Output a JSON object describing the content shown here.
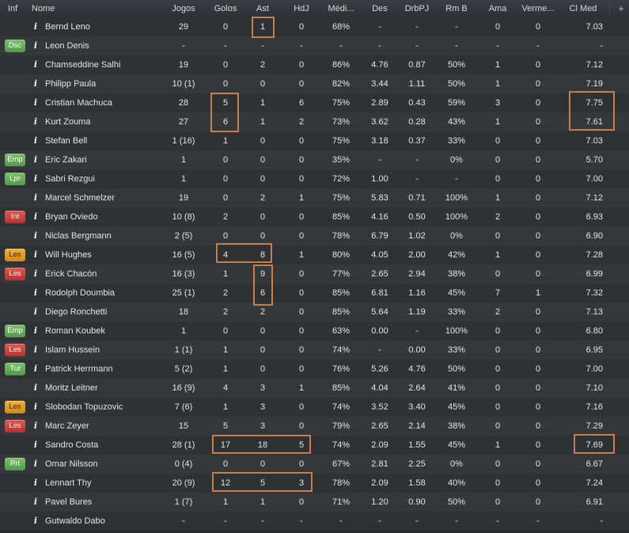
{
  "colors": {
    "highlight": "#c87d4c",
    "badge_green": "#5aa84f",
    "badge_red": "#c83a36",
    "badge_orange": "#e09a1f"
  },
  "header": {
    "inf": "Inf",
    "nome": "Nome",
    "jogos": "Jogos",
    "golos": "Golos",
    "ast": "Ast",
    "hdj": "HdJ",
    "media": "Médi...",
    "des": "Des",
    "drbpj": "DrbPJ",
    "rmb": "Rm B",
    "ama": "Ama",
    "verm": "Verme...",
    "clmed": "Cl Med",
    "add_icon": "plus-icon"
  },
  "info_icon": "i",
  "rows": [
    {
      "badge": "",
      "name": "Bernd Leno",
      "jogos": "29",
      "golos": "0",
      "ast": "1",
      "hdj": "0",
      "media": "68%",
      "des": "-",
      "drbpj": "-",
      "rmb": "-",
      "ama": "0",
      "verm": "0",
      "clmed": "7.03"
    },
    {
      "badge": "Dsc",
      "name": "Leon Denis",
      "jogos": "-",
      "golos": "-",
      "ast": "-",
      "hdj": "-",
      "media": "-",
      "des": "-",
      "drbpj": "-",
      "rmb": "-",
      "ama": "-",
      "verm": "-",
      "clmed": "-"
    },
    {
      "badge": "",
      "name": "Chamseddine Salhi",
      "jogos": "19",
      "golos": "0",
      "ast": "2",
      "hdj": "0",
      "media": "86%",
      "des": "4.76",
      "drbpj": "0.87",
      "rmb": "50%",
      "ama": "1",
      "verm": "0",
      "clmed": "7.12"
    },
    {
      "badge": "",
      "name": "Philipp Paula",
      "jogos": "10 (1)",
      "golos": "0",
      "ast": "0",
      "hdj": "0",
      "media": "82%",
      "des": "3.44",
      "drbpj": "1.11",
      "rmb": "50%",
      "ama": "1",
      "verm": "0",
      "clmed": "7.19"
    },
    {
      "badge": "",
      "name": "Cristian Machuca",
      "jogos": "28",
      "golos": "5",
      "ast": "1",
      "hdj": "6",
      "media": "75%",
      "des": "2.89",
      "drbpj": "0.43",
      "rmb": "59%",
      "ama": "3",
      "verm": "0",
      "clmed": "7.75"
    },
    {
      "badge": "",
      "name": "Kurt Zouma",
      "jogos": "27",
      "golos": "6",
      "ast": "1",
      "hdj": "2",
      "media": "73%",
      "des": "3.62",
      "drbpj": "0.28",
      "rmb": "43%",
      "ama": "1",
      "verm": "0",
      "clmed": "7.61"
    },
    {
      "badge": "",
      "name": "Stefan Bell",
      "jogos": "1 (16)",
      "golos": "1",
      "ast": "0",
      "hdj": "0",
      "media": "75%",
      "des": "3.18",
      "drbpj": "0.37",
      "rmb": "33%",
      "ama": "0",
      "verm": "0",
      "clmed": "7.03"
    },
    {
      "badge": "Emp",
      "name": "Eric Zakari",
      "jogos": "1",
      "golos": "0",
      "ast": "0",
      "hdj": "0",
      "media": "35%",
      "des": "-",
      "drbpj": "-",
      "rmb": "0%",
      "ama": "0",
      "verm": "0",
      "clmed": "5.70"
    },
    {
      "badge": "Lpr",
      "name": "Sabri Rezgui",
      "jogos": "1",
      "golos": "0",
      "ast": "0",
      "hdj": "0",
      "media": "72%",
      "des": "1.00",
      "drbpj": "-",
      "rmb": "-",
      "ama": "0",
      "verm": "0",
      "clmed": "7.00"
    },
    {
      "badge": "",
      "name": "Marcel Schmelzer",
      "jogos": "19",
      "golos": "0",
      "ast": "2",
      "hdj": "1",
      "media": "75%",
      "des": "5.83",
      "drbpj": "0.71",
      "rmb": "100%",
      "ama": "1",
      "verm": "0",
      "clmed": "7.12"
    },
    {
      "badge": "Int",
      "name": "Bryan Oviedo",
      "jogos": "10 (8)",
      "golos": "2",
      "ast": "0",
      "hdj": "0",
      "media": "85%",
      "des": "4.16",
      "drbpj": "0.50",
      "rmb": "100%",
      "ama": "2",
      "verm": "0",
      "clmed": "6.93"
    },
    {
      "badge": "",
      "name": "Niclas Bergmann",
      "jogos": "2 (5)",
      "golos": "0",
      "ast": "0",
      "hdj": "0",
      "media": "78%",
      "des": "6.79",
      "drbpj": "1.02",
      "rmb": "0%",
      "ama": "0",
      "verm": "0",
      "clmed": "6.90"
    },
    {
      "badge": "Les",
      "name": "Will Hughes",
      "jogos": "16 (5)",
      "golos": "4",
      "ast": "8",
      "hdj": "1",
      "media": "80%",
      "des": "4.05",
      "drbpj": "2.00",
      "rmb": "42%",
      "ama": "1",
      "verm": "0",
      "clmed": "7.28"
    },
    {
      "badge": "Les",
      "name": "Erick Chacón",
      "jogos": "16 (3)",
      "golos": "1",
      "ast": "9",
      "hdj": "0",
      "media": "77%",
      "des": "2.65",
      "drbpj": "2.94",
      "rmb": "38%",
      "ama": "0",
      "verm": "0",
      "clmed": "6.99"
    },
    {
      "badge": "",
      "name": "Rodolph Doumbia",
      "jogos": "25 (1)",
      "golos": "2",
      "ast": "6",
      "hdj": "0",
      "media": "85%",
      "des": "6.81",
      "drbpj": "1.16",
      "rmb": "45%",
      "ama": "7",
      "verm": "1",
      "clmed": "7.32"
    },
    {
      "badge": "",
      "name": "Diego Ronchetti",
      "jogos": "18",
      "golos": "2",
      "ast": "2",
      "hdj": "0",
      "media": "85%",
      "des": "5.64",
      "drbpj": "1.19",
      "rmb": "33%",
      "ama": "2",
      "verm": "0",
      "clmed": "7.13"
    },
    {
      "badge": "Emp",
      "name": "Roman Koubek",
      "jogos": "1",
      "golos": "0",
      "ast": "0",
      "hdj": "0",
      "media": "63%",
      "des": "0.00",
      "drbpj": "-",
      "rmb": "100%",
      "ama": "0",
      "verm": "0",
      "clmed": "6.80"
    },
    {
      "badge": "Les",
      "name": "Islam Hussein",
      "jogos": "1 (1)",
      "golos": "1",
      "ast": "0",
      "hdj": "0",
      "media": "74%",
      "des": "-",
      "drbpj": "0.00",
      "rmb": "33%",
      "ama": "0",
      "verm": "0",
      "clmed": "6.95"
    },
    {
      "badge": "Tut",
      "name": "Patrick Herrmann",
      "jogos": "5 (2)",
      "golos": "1",
      "ast": "0",
      "hdj": "0",
      "media": "76%",
      "des": "5.26",
      "drbpj": "4.76",
      "rmb": "50%",
      "ama": "0",
      "verm": "0",
      "clmed": "7.00"
    },
    {
      "badge": "",
      "name": "Moritz Leitner",
      "jogos": "16 (9)",
      "golos": "4",
      "ast": "3",
      "hdj": "1",
      "media": "85%",
      "des": "4.04",
      "drbpj": "2.64",
      "rmb": "41%",
      "ama": "0",
      "verm": "0",
      "clmed": "7.10"
    },
    {
      "badge": "Les",
      "name": "Slobodan Topuzovic",
      "jogos": "7 (6)",
      "golos": "1",
      "ast": "3",
      "hdj": "0",
      "media": "74%",
      "des": "3.52",
      "drbpj": "3.40",
      "rmb": "45%",
      "ama": "0",
      "verm": "0",
      "clmed": "7.16"
    },
    {
      "badge": "Les",
      "name": "Marc Zeyer",
      "jogos": "15",
      "golos": "5",
      "ast": "3",
      "hdj": "0",
      "media": "79%",
      "des": "2.65",
      "drbpj": "2.14",
      "rmb": "38%",
      "ama": "0",
      "verm": "0",
      "clmed": "7.29"
    },
    {
      "badge": "",
      "name": "Sandro Costa",
      "jogos": "28 (1)",
      "golos": "17",
      "ast": "18",
      "hdj": "5",
      "media": "74%",
      "des": "2.09",
      "drbpj": "1.55",
      "rmb": "45%",
      "ama": "1",
      "verm": "0",
      "clmed": "7.69"
    },
    {
      "badge": "Prt",
      "name": "Omar Nilsson",
      "jogos": "0 (4)",
      "golos": "0",
      "ast": "0",
      "hdj": "0",
      "media": "67%",
      "des": "2.81",
      "drbpj": "2.25",
      "rmb": "0%",
      "ama": "0",
      "verm": "0",
      "clmed": "6.67"
    },
    {
      "badge": "",
      "name": "Lennart Thy",
      "jogos": "20 (9)",
      "golos": "12",
      "ast": "5",
      "hdj": "3",
      "media": "78%",
      "des": "2.09",
      "drbpj": "1.58",
      "rmb": "40%",
      "ama": "0",
      "verm": "0",
      "clmed": "7.24"
    },
    {
      "badge": "",
      "name": "Pavel Bures",
      "jogos": "1 (7)",
      "golos": "1",
      "ast": "1",
      "hdj": "0",
      "media": "71%",
      "des": "1.20",
      "drbpj": "0.90",
      "rmb": "50%",
      "ama": "0",
      "verm": "0",
      "clmed": "6.91"
    },
    {
      "badge": "",
      "name": "Gutwaldo Dabo",
      "jogos": "-",
      "golos": "-",
      "ast": "-",
      "hdj": "-",
      "media": "-",
      "des": "-",
      "drbpj": "-",
      "rmb": "-",
      "ama": "-",
      "verm": "-",
      "clmed": "-"
    }
  ]
}
